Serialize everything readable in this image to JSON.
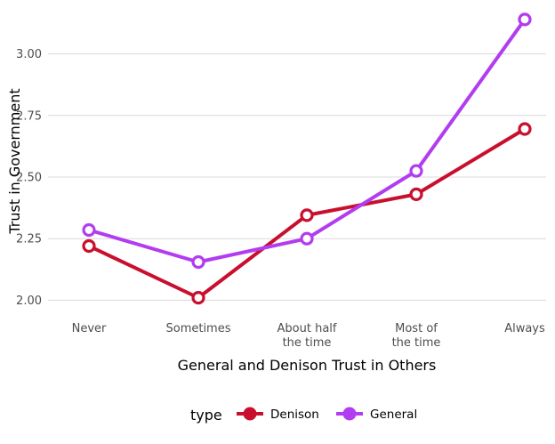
{
  "chart_data": {
    "type": "line",
    "categories": [
      [
        "Never"
      ],
      [
        "Sometimes"
      ],
      [
        "About half",
        "the time"
      ],
      [
        "Most of",
        "the time"
      ],
      [
        "Always"
      ]
    ],
    "xlabel": "General and Denison Trust in Others",
    "ylabel": "Trust in Government",
    "ylim": [
      1.94,
      3.19
    ],
    "yticks": [
      2.0,
      2.25,
      2.5,
      2.75,
      3.0
    ],
    "ytick_labels": [
      "2.00",
      "2.25",
      "2.50",
      "2.75",
      "3.00"
    ],
    "grid": "horizontal",
    "legend": {
      "title": "type",
      "position": "bottom"
    },
    "series": [
      {
        "name": "Denison",
        "color": "#c8102e",
        "values": [
          2.22,
          2.01,
          2.345,
          2.43,
          2.695
        ]
      },
      {
        "name": "General",
        "color": "#b23cf0",
        "values": [
          2.285,
          2.155,
          2.25,
          2.525,
          3.14
        ]
      }
    ]
  }
}
